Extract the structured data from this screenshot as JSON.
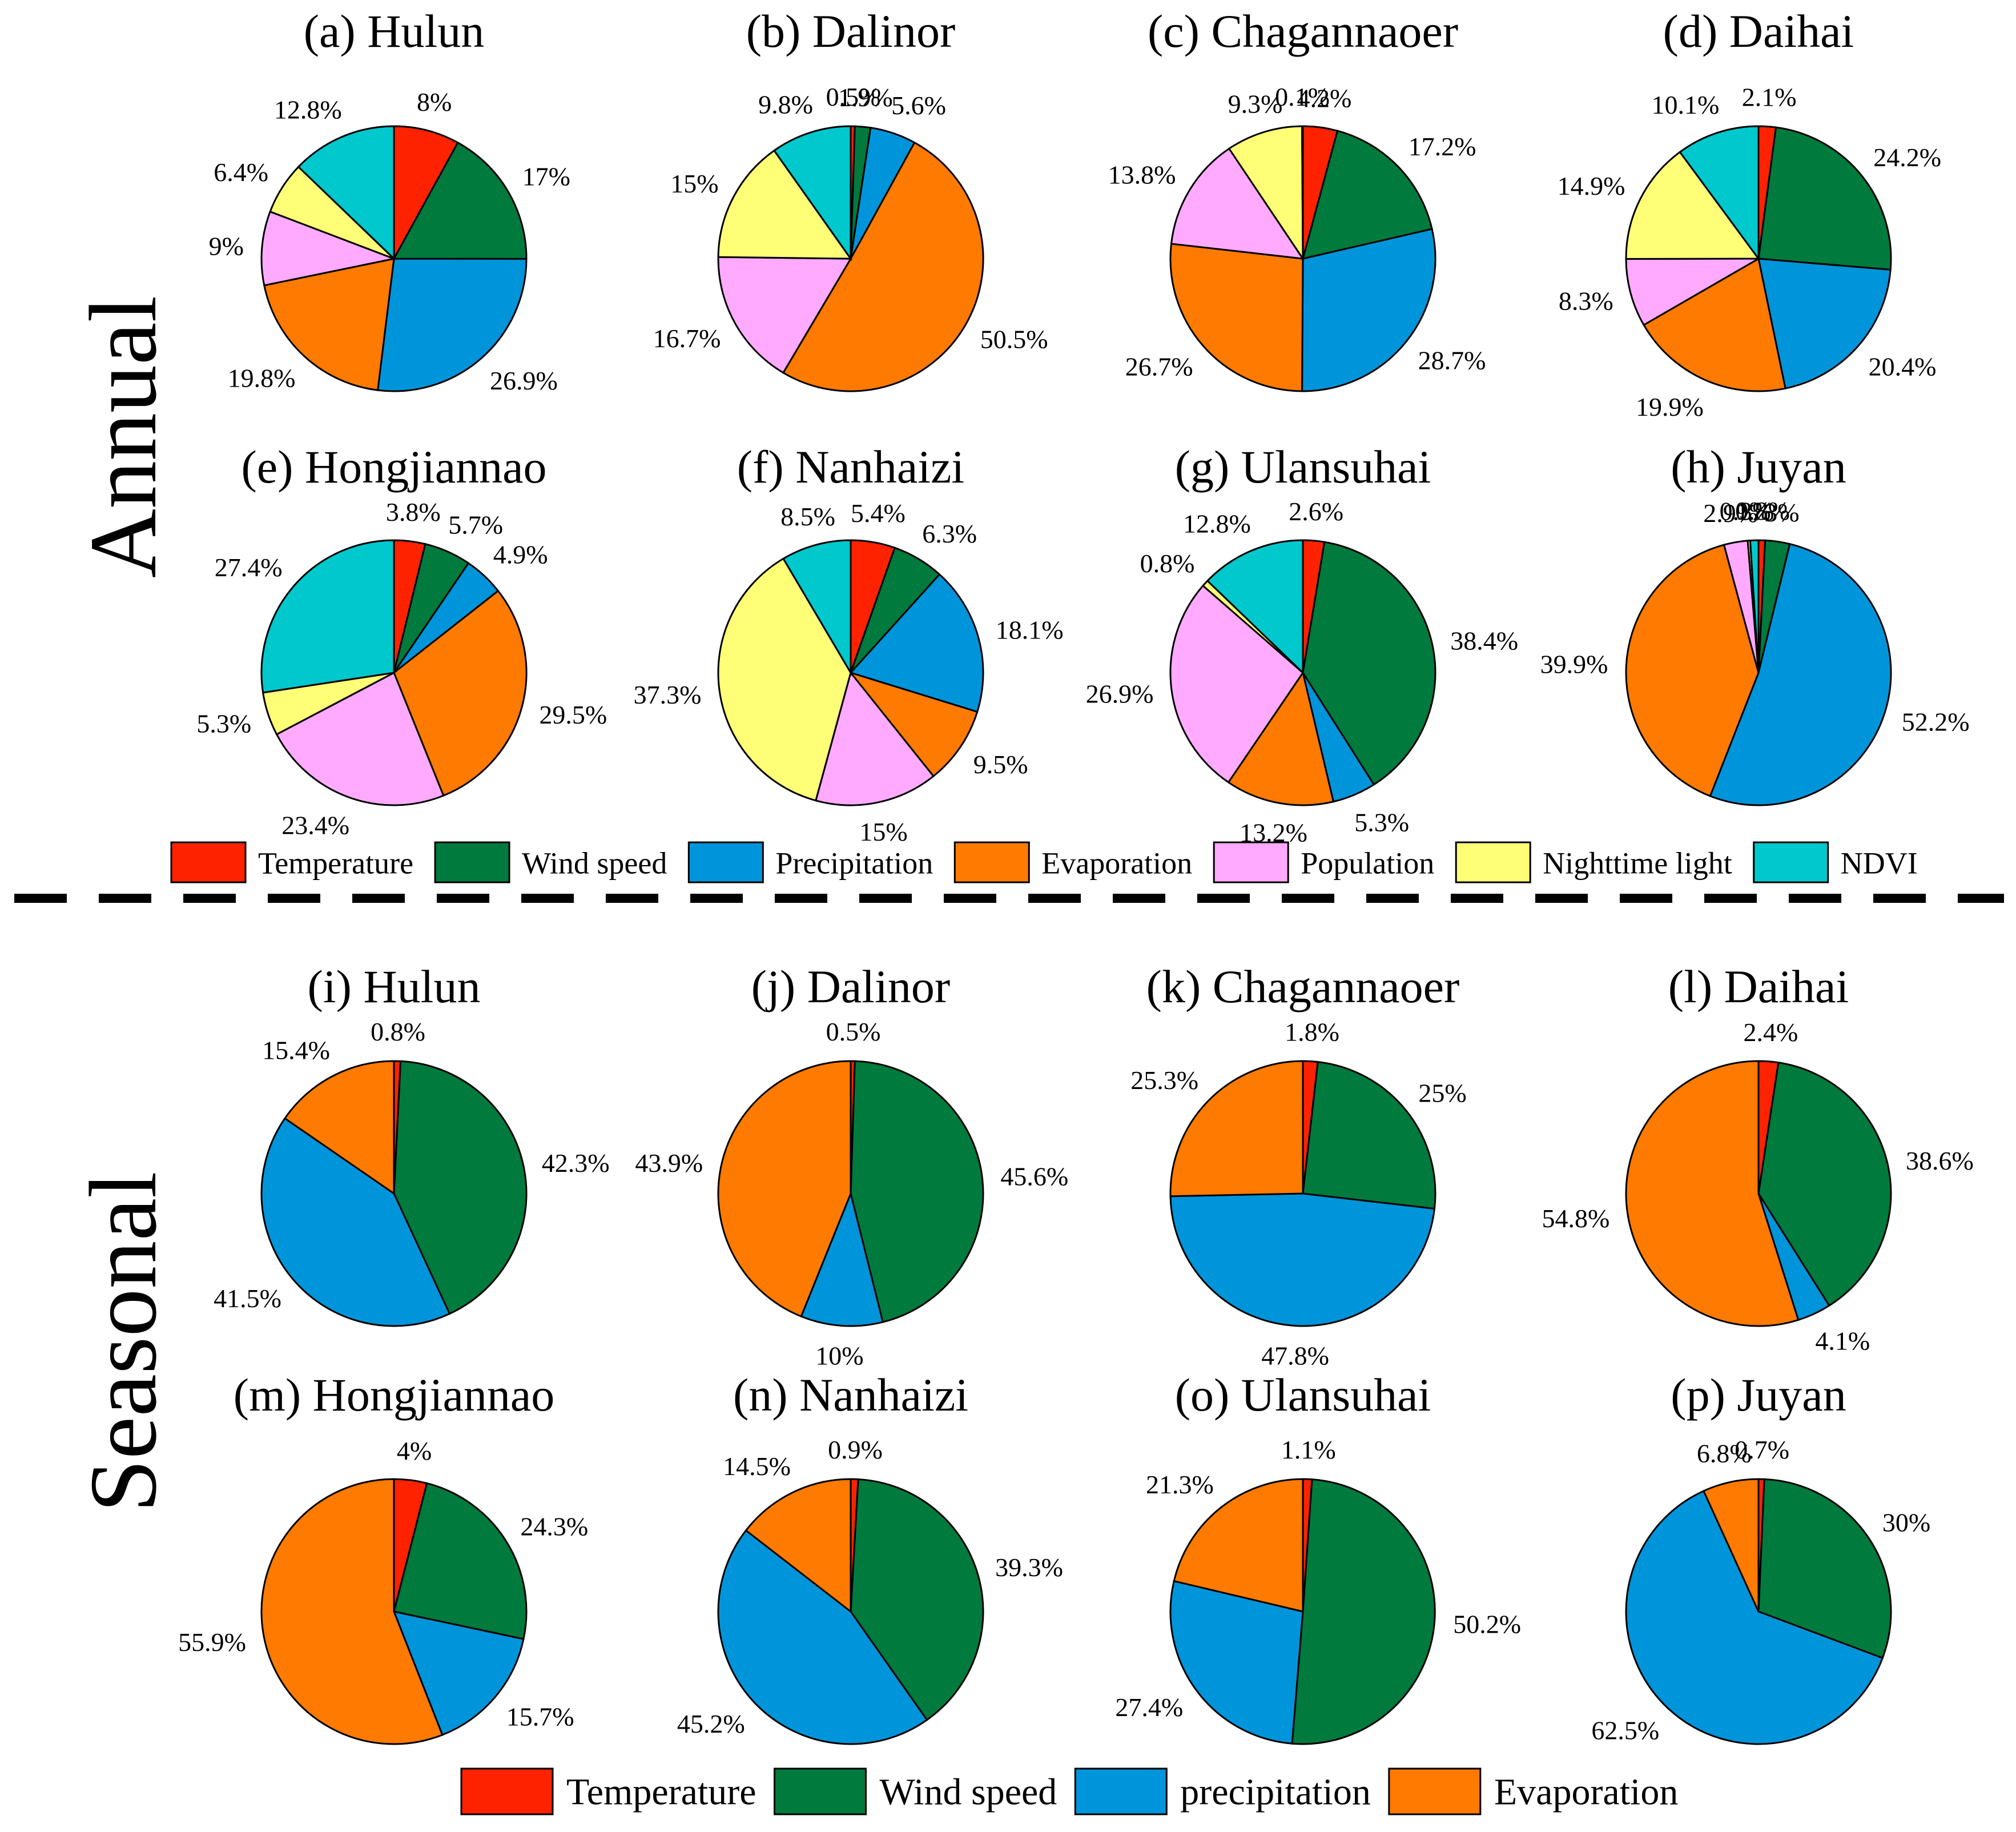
{
  "sections": {
    "annual": "Annual",
    "seasonal": "Seasonal"
  },
  "colors": {
    "Temperature": "#ff2200",
    "Wind speed": "#007a3d",
    "Precipitation": "#0095da",
    "Evaporation": "#ff7a00",
    "Population": "#ffaaff",
    "Nighttime light": "#ffff77",
    "NDVI": "#00c8cc"
  },
  "legend_annual": [
    {
      "key": "Temperature",
      "label": "Temperature"
    },
    {
      "key": "Wind speed",
      "label": "Wind speed"
    },
    {
      "key": "Precipitation",
      "label": "Precipitation"
    },
    {
      "key": "Evaporation",
      "label": "Evaporation"
    },
    {
      "key": "Population",
      "label": "Population"
    },
    {
      "key": "Nighttime light",
      "label": "Nighttime light"
    },
    {
      "key": "NDVI",
      "label": "NDVI"
    }
  ],
  "legend_seasonal": [
    {
      "key": "Temperature",
      "label": "Temperature"
    },
    {
      "key": "Wind speed",
      "label": "Wind speed"
    },
    {
      "key": "Precipitation",
      "label": "precipitation"
    },
    {
      "key": "Evaporation",
      "label": "Evaporation"
    }
  ],
  "chart_data": [
    {
      "type": "pie",
      "group": "Annual",
      "title": "(a) Hulun",
      "labels": [
        "Temperature",
        "Wind speed",
        "Precipitation",
        "Evaporation",
        "Population",
        "Nighttime light",
        "NDVI"
      ],
      "values": [
        8,
        17,
        26.9,
        19.8,
        9,
        6.4,
        12.8
      ],
      "value_labels": [
        "8%",
        "17%",
        "26.9%",
        "19.8%",
        "9%",
        "6.4%",
        "12.8%"
      ]
    },
    {
      "type": "pie",
      "group": "Annual",
      "title": "(b) Dalinor",
      "labels": [
        "Temperature",
        "Wind speed",
        "Precipitation",
        "Evaporation",
        "Population",
        "Nighttime light",
        "NDVI"
      ],
      "values": [
        0.5,
        1.9,
        5.6,
        50.5,
        16.7,
        15,
        9.8
      ],
      "value_labels": [
        "0.5%",
        "1.9%",
        "5.6%",
        "50.5%",
        "16.7%",
        "15%",
        "9.8%"
      ]
    },
    {
      "type": "pie",
      "group": "Annual",
      "title": "(c) Chagannaoer",
      "labels": [
        "Temperature",
        "Wind speed",
        "Precipitation",
        "Evaporation",
        "Population",
        "Nighttime light",
        "NDVI"
      ],
      "values": [
        4.2,
        17.2,
        28.7,
        26.7,
        13.8,
        9.3,
        0.1
      ],
      "value_labels": [
        "4.2%",
        "17.2%",
        "28.7%",
        "26.7%",
        "13.8%",
        "9.3%",
        "0.1%"
      ]
    },
    {
      "type": "pie",
      "group": "Annual",
      "title": "(d) Daihai",
      "labels": [
        "Temperature",
        "Wind speed",
        "Precipitation",
        "Evaporation",
        "Population",
        "Nighttime light",
        "NDVI"
      ],
      "values": [
        2.1,
        24.2,
        20.4,
        19.9,
        8.3,
        14.9,
        10.1
      ],
      "value_labels": [
        "2.1%",
        "24.2%",
        "20.4%",
        "19.9%",
        "8.3%",
        "14.9%",
        "10.1%"
      ]
    },
    {
      "type": "pie",
      "group": "Annual",
      "title": "(e) Hongjiannao",
      "labels": [
        "Temperature",
        "Wind speed",
        "Precipitation",
        "Evaporation",
        "Population",
        "Nighttime light",
        "NDVI"
      ],
      "values": [
        3.8,
        5.7,
        4.9,
        29.5,
        23.4,
        5.3,
        27.4
      ],
      "value_labels": [
        "3.8%",
        "5.7%",
        "4.9%",
        "29.5%",
        "23.4%",
        "5.3%",
        "27.4%"
      ]
    },
    {
      "type": "pie",
      "group": "Annual",
      "title": "(f) Nanhaizi",
      "labels": [
        "Temperature",
        "Wind speed",
        "Precipitation",
        "Evaporation",
        "Population",
        "Nighttime light",
        "NDVI"
      ],
      "values": [
        5.4,
        6.3,
        18.1,
        9.5,
        15,
        37.3,
        8.5
      ],
      "value_labels": [
        "5.4%",
        "6.3%",
        "18.1%",
        "9.5%",
        "15%",
        "37.3%",
        "8.5%"
      ]
    },
    {
      "type": "pie",
      "group": "Annual",
      "title": "(g) Ulansuhai",
      "labels": [
        "Temperature",
        "Wind speed",
        "Precipitation",
        "Evaporation",
        "Population",
        "Nighttime light",
        "NDVI"
      ],
      "values": [
        2.6,
        38.4,
        5.3,
        13.2,
        26.9,
        0.8,
        12.8
      ],
      "value_labels": [
        "2.6%",
        "38.4%",
        "5.3%",
        "13.2%",
        "26.9%",
        "0.8%",
        "12.8%"
      ]
    },
    {
      "type": "pie",
      "group": "Annual",
      "title": "(h) Juyan",
      "labels": [
        "Temperature",
        "Wind speed",
        "Precipitation",
        "Evaporation",
        "Population",
        "Nighttime light",
        "NDVI"
      ],
      "values": [
        0.8,
        3,
        52.2,
        39.9,
        2.9,
        0.3,
        1
      ],
      "value_labels": [
        "0.8%",
        "3%",
        "52.2%",
        "39.9%",
        "2.9%",
        "0.3%",
        "1%"
      ]
    },
    {
      "type": "pie",
      "group": "Seasonal",
      "title": "(i) Hulun",
      "labels": [
        "Temperature",
        "Wind speed",
        "Precipitation",
        "Evaporation"
      ],
      "values": [
        0.8,
        42.3,
        41.5,
        15.4
      ],
      "value_labels": [
        "0.8%",
        "42.3%",
        "41.5%",
        "15.4%"
      ]
    },
    {
      "type": "pie",
      "group": "Seasonal",
      "title": "(j) Dalinor",
      "labels": [
        "Temperature",
        "Wind speed",
        "Precipitation",
        "Evaporation"
      ],
      "values": [
        0.5,
        45.6,
        10,
        43.9
      ],
      "value_labels": [
        "0.5%",
        "45.6%",
        "10%",
        "43.9%"
      ]
    },
    {
      "type": "pie",
      "group": "Seasonal",
      "title": "(k) Chagannaoer",
      "labels": [
        "Temperature",
        "Wind speed",
        "Precipitation",
        "Evaporation"
      ],
      "values": [
        1.8,
        25,
        47.8,
        25.3
      ],
      "value_labels": [
        "1.8%",
        "25%",
        "47.8%",
        "25.3%"
      ]
    },
    {
      "type": "pie",
      "group": "Seasonal",
      "title": "(l) Daihai",
      "labels": [
        "Temperature",
        "Wind speed",
        "Precipitation",
        "Evaporation"
      ],
      "values": [
        2.4,
        38.6,
        4.1,
        54.8
      ],
      "value_labels": [
        "2.4%",
        "38.6%",
        "4.1%",
        "54.8%"
      ]
    },
    {
      "type": "pie",
      "group": "Seasonal",
      "title": "(m) Hongjiannao",
      "labels": [
        "Temperature",
        "Wind speed",
        "Precipitation",
        "Evaporation"
      ],
      "values": [
        4,
        24.3,
        15.7,
        55.9
      ],
      "value_labels": [
        "4%",
        "24.3%",
        "15.7%",
        "55.9%"
      ]
    },
    {
      "type": "pie",
      "group": "Seasonal",
      "title": "(n) Nanhaizi",
      "labels": [
        "Temperature",
        "Wind speed",
        "Precipitation",
        "Evaporation"
      ],
      "values": [
        0.9,
        39.3,
        45.2,
        14.5
      ],
      "value_labels": [
        "0.9%",
        "39.3%",
        "45.2%",
        "14.5%"
      ]
    },
    {
      "type": "pie",
      "group": "Seasonal",
      "title": "(o) Ulansuhai",
      "labels": [
        "Temperature",
        "Wind speed",
        "Precipitation",
        "Evaporation"
      ],
      "values": [
        1.1,
        50.2,
        27.4,
        21.3
      ],
      "value_labels": [
        "1.1%",
        "50.2%",
        "27.4%",
        "21.3%"
      ]
    },
    {
      "type": "pie",
      "group": "Seasonal",
      "title": "(p) Juyan",
      "labels": [
        "Temperature",
        "Wind speed",
        "Precipitation",
        "Evaporation"
      ],
      "values": [
        0.7,
        30,
        62.5,
        6.8
      ],
      "value_labels": [
        "0.7%",
        "30%",
        "62.5%",
        "6.8%"
      ]
    }
  ]
}
